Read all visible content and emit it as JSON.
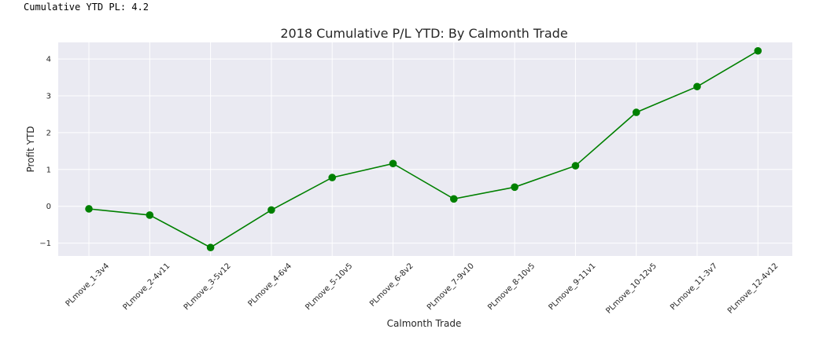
{
  "output_text": "Cumulative YTD PL: 4.2",
  "chart_data": {
    "type": "line",
    "title": "2018 Cumulative P/L YTD:  By Calmonth Trade",
    "xlabel": "Calmonth Trade",
    "ylabel": "Profit YTD",
    "categories": [
      "PLmove_1-3v4",
      "PLmove_2-4v11",
      "PLmove_3-5v12",
      "PLmove_4-6v4",
      "PLmove_5-10v5",
      "PLmove_6-8v2",
      "PLmove_7-9v10",
      "PLmove_8-10v5",
      "PLmove_9-11v1",
      "PLmove_10-12v5",
      "PLmove_11-3v7",
      "PLmove_12-4v12"
    ],
    "values": [
      -0.07,
      -0.24,
      -1.12,
      -0.1,
      0.78,
      1.16,
      0.2,
      0.52,
      1.1,
      2.55,
      3.25,
      4.22
    ],
    "ylim": [
      -1.35,
      4.45
    ],
    "yticks": [
      -1,
      0,
      1,
      2,
      3,
      4
    ],
    "ytick_labels": [
      "−1",
      "0",
      "1",
      "2",
      "3",
      "4"
    ],
    "grid": true,
    "line_color": "#008000",
    "marker_color": "#008000",
    "background_color": "#eaeaf2"
  }
}
